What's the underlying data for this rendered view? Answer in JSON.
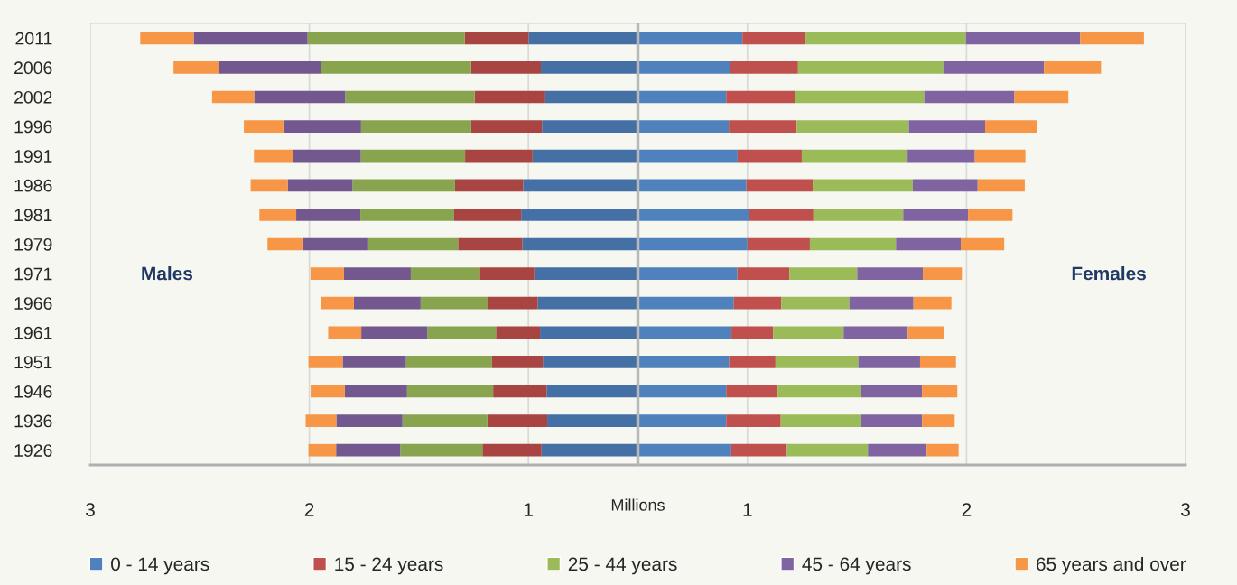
{
  "chart_data": {
    "type": "bar",
    "orientation": "horizontal",
    "stacked": true,
    "categories": [
      "2011",
      "2006",
      "2002",
      "1996",
      "1991",
      "1986",
      "1981",
      "1979",
      "1971",
      "1966",
      "1961",
      "1951",
      "1946",
      "1936",
      "1926"
    ],
    "series": [
      {
        "color": "#4470a6",
        "values": [
          -0.499,
          -0.443,
          -0.423,
          -0.438,
          -0.481,
          -0.524,
          -0.533,
          -0.527,
          -0.473,
          -0.457,
          -0.447,
          -0.434,
          -0.417,
          -0.414,
          -0.44
        ]
      },
      {
        "color": "#a84442",
        "values": [
          -0.291,
          -0.319,
          -0.323,
          -0.323,
          -0.308,
          -0.311,
          -0.306,
          -0.294,
          -0.249,
          -0.228,
          -0.201,
          -0.232,
          -0.244,
          -0.273,
          -0.27
        ]
      },
      {
        "color": "#89a44f",
        "values": [
          -0.718,
          -0.683,
          -0.59,
          -0.503,
          -0.476,
          -0.468,
          -0.428,
          -0.41,
          -0.315,
          -0.307,
          -0.313,
          -0.393,
          -0.393,
          -0.388,
          -0.375
        ]
      },
      {
        "color": "#72588f",
        "values": [
          -0.52,
          -0.466,
          -0.416,
          -0.355,
          -0.311,
          -0.296,
          -0.293,
          -0.297,
          -0.305,
          -0.305,
          -0.302,
          -0.289,
          -0.284,
          -0.302,
          -0.293
        ]
      },
      {
        "color": "#f79646",
        "values": [
          -0.244,
          -0.209,
          -0.192,
          -0.18,
          -0.177,
          -0.169,
          -0.168,
          -0.163,
          -0.153,
          -0.151,
          -0.151,
          -0.156,
          -0.156,
          -0.14,
          -0.126
        ]
      },
      {
        "name": "0 - 14 years",
        "color": "#4f81bd",
        "values": [
          0.477,
          0.42,
          0.403,
          0.415,
          0.455,
          0.495,
          0.505,
          0.5,
          0.454,
          0.438,
          0.427,
          0.416,
          0.403,
          0.403,
          0.426
        ]
      },
      {
        "name": "15 - 24 years",
        "color": "#c0504d",
        "values": [
          0.288,
          0.311,
          0.314,
          0.31,
          0.293,
          0.303,
          0.296,
          0.285,
          0.237,
          0.217,
          0.19,
          0.212,
          0.235,
          0.249,
          0.254
        ]
      },
      {
        "name": "25 - 44 years",
        "color": "#9bbb59",
        "values": [
          0.732,
          0.663,
          0.59,
          0.512,
          0.483,
          0.457,
          0.41,
          0.393,
          0.31,
          0.31,
          0.322,
          0.378,
          0.382,
          0.368,
          0.37
        ]
      },
      {
        "name": "45 - 64 years",
        "color": "#8064a2",
        "values": [
          0.522,
          0.46,
          0.412,
          0.348,
          0.307,
          0.296,
          0.296,
          0.296,
          0.3,
          0.293,
          0.293,
          0.282,
          0.277,
          0.277,
          0.268
        ]
      },
      {
        "name": "65 years and over",
        "color": "#f79646",
        "values": [
          0.291,
          0.26,
          0.246,
          0.237,
          0.231,
          0.215,
          0.203,
          0.198,
          0.178,
          0.173,
          0.166,
          0.164,
          0.161,
          0.149,
          0.146
        ]
      }
    ],
    "xlim": [
      -2.5,
      2.5
    ],
    "xticks": [
      {
        "value": -2.5,
        "label": "3"
      },
      {
        "value": -1.5,
        "label": "2"
      },
      {
        "value": -0.5,
        "label": "1"
      },
      {
        "value": 0.5,
        "label": "1"
      },
      {
        "value": 1.5,
        "label": "2"
      },
      {
        "value": 2.5,
        "label": "3"
      }
    ],
    "xlabel": "Millions",
    "annotations": [
      "Males",
      "Females"
    ],
    "grid": "x",
    "legend": "bottom"
  }
}
